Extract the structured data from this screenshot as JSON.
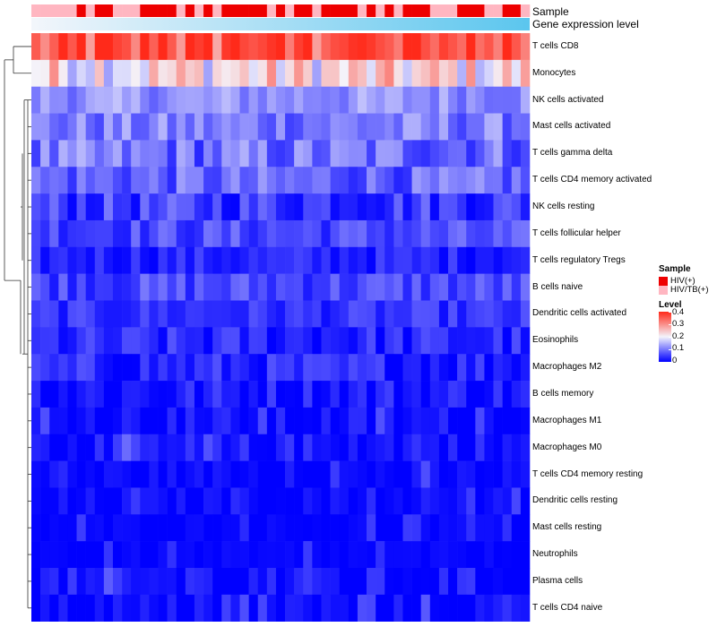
{
  "chart_data": {
    "type": "heatmap",
    "annotation_tracks": [
      {
        "name": "Sample",
        "label": "Sample"
      },
      {
        "name": "Gene expression level",
        "label": "Gene expression level"
      }
    ],
    "sample_groups": [
      "HIV/TB(+)",
      "HIV/TB(+)",
      "HIV/TB(+)",
      "HIV/TB(+)",
      "HIV/TB(+)",
      "HIV(+)",
      "HIV/TB(+)",
      "HIV(+)",
      "HIV(+)",
      "HIV/TB(+)",
      "HIV/TB(+)",
      "HIV/TB(+)",
      "HIV(+)",
      "HIV(+)",
      "HIV(+)",
      "HIV(+)",
      "HIV/TB(+)",
      "HIV(+)",
      "HIV/TB(+)",
      "HIV(+)",
      "HIV/TB(+)",
      "HIV(+)",
      "HIV(+)",
      "HIV(+)",
      "HIV(+)",
      "HIV(+)",
      "HIV/TB(+)",
      "HIV(+)",
      "HIV/TB(+)",
      "HIV(+)",
      "HIV(+)",
      "HIV/TB(+)",
      "HIV(+)",
      "HIV(+)",
      "HIV(+)",
      "HIV(+)",
      "HIV/TB(+)",
      "HIV(+)",
      "HIV/TB(+)",
      "HIV(+)",
      "HIV/TB(+)",
      "HIV(+)",
      "HIV(+)",
      "HIV(+)",
      "HIV/TB(+)",
      "HIV/TB(+)",
      "HIV/TB(+)",
      "HIV(+)",
      "HIV(+)",
      "HIV(+)",
      "HIV/TB(+)",
      "HIV/TB(+)",
      "HIV(+)",
      "HIV(+)",
      "HIV/TB(+)"
    ],
    "rows": [
      {
        "label": "T cells CD8",
        "base": 0.33,
        "spread": 0.07
      },
      {
        "label": "Monocytes",
        "base": 0.22,
        "spread": 0.09
      },
      {
        "label": "NK cells activated",
        "base": 0.12,
        "spread": 0.04
      },
      {
        "label": "Mast cells activated",
        "base": 0.1,
        "spread": 0.05
      },
      {
        "label": "T cells gamma delta",
        "base": 0.09,
        "spread": 0.06
      },
      {
        "label": "T cells CD4 memory activated",
        "base": 0.08,
        "spread": 0.05
      },
      {
        "label": "NK cells resting",
        "base": 0.05,
        "spread": 0.05
      },
      {
        "label": "T cells follicular helper",
        "base": 0.06,
        "spread": 0.04
      },
      {
        "label": "T cells regulatory  Tregs",
        "base": 0.03,
        "spread": 0.03
      },
      {
        "label": "B cells naive",
        "base": 0.06,
        "spread": 0.04
      },
      {
        "label": "Dendritic cells activated",
        "base": 0.04,
        "spread": 0.03
      },
      {
        "label": "Eosinophils",
        "base": 0.03,
        "spread": 0.04
      },
      {
        "label": "Macrophages M2",
        "base": 0.03,
        "spread": 0.04
      },
      {
        "label": "B cells memory",
        "base": 0.02,
        "spread": 0.04
      },
      {
        "label": "Macrophages M1",
        "base": 0.01,
        "spread": 0.03
      },
      {
        "label": "Macrophages M0",
        "base": 0.01,
        "spread": 0.04
      },
      {
        "label": "T cells CD4 memory resting",
        "base": 0.005,
        "spread": 0.02
      },
      {
        "label": "Dendritic cells resting",
        "base": 0.005,
        "spread": 0.02
      },
      {
        "label": "Mast cells resting",
        "base": 0.003,
        "spread": 0.01
      },
      {
        "label": "Neutrophils",
        "base": 0.002,
        "spread": 0.01
      },
      {
        "label": "Plasma cells",
        "base": 0.01,
        "spread": 0.04
      },
      {
        "label": "T cells CD4 naive",
        "base": 0.004,
        "spread": 0.03
      }
    ],
    "scale": {
      "min": 0,
      "max": 0.4,
      "low_color": "#0000ff",
      "mid_color": "#f4f4fb",
      "high_color": "#ff2a1a"
    },
    "dendrogram": "row clustering (left)"
  },
  "legend": {
    "sample": {
      "title": "Sample",
      "items": [
        {
          "label": "HIV(+)",
          "color": "#ee0000"
        },
        {
          "label": "HIV/TB(+)",
          "color": "#ffb6c1"
        }
      ]
    },
    "level": {
      "title": "Level",
      "ticks": [
        "0.4",
        "0.3",
        "0.2",
        "0.1",
        "0"
      ]
    }
  },
  "colors": {
    "hiv": "#ee0000",
    "hivtb": "#ffb6c1",
    "expression_track": "#5bc6ee"
  }
}
